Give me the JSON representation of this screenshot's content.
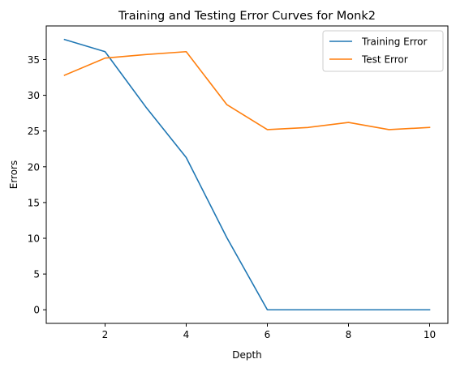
{
  "chart_data": {
    "type": "line",
    "title": "Training and Testing Error Curves for Monk2",
    "xlabel": "Depth",
    "ylabel": "Errors",
    "xlim": [
      0.55,
      10.45
    ],
    "ylim": [
      -1.9,
      39.7
    ],
    "grid": false,
    "legend_position": "top-right",
    "x_ticks": [
      2,
      4,
      6,
      8,
      10
    ],
    "y_ticks": [
      0,
      5,
      10,
      15,
      20,
      25,
      30,
      35
    ],
    "x": [
      1,
      2,
      3,
      4,
      5,
      6,
      7,
      8,
      9,
      10
    ],
    "series": [
      {
        "name": "Training Error",
        "color": "#1f77b4",
        "values": [
          37.8,
          36.1,
          28.4,
          21.3,
          10.1,
          0,
          0,
          0,
          0,
          0
        ]
      },
      {
        "name": "Test Error",
        "color": "#ff7f0e",
        "values": [
          32.8,
          35.2,
          35.7,
          36.1,
          28.7,
          25.2,
          25.5,
          26.2,
          25.2,
          25.5
        ]
      }
    ]
  }
}
